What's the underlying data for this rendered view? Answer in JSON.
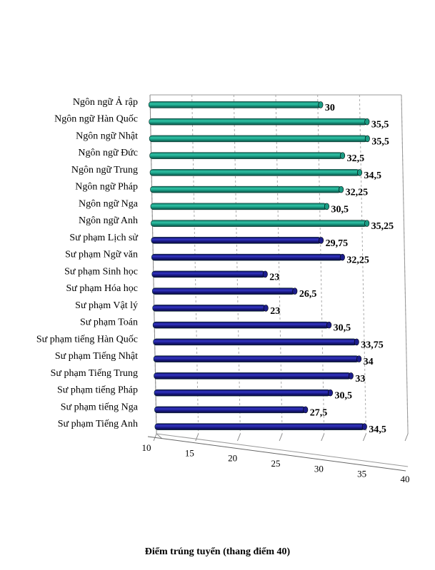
{
  "chart_data": {
    "type": "bar",
    "orientation": "horizontal",
    "categories": [
      "Ngôn ngữ Ả rập",
      "Ngôn ngữ Hàn Quốc",
      "Ngôn ngữ Nhật",
      "Ngôn ngữ Đức",
      "Ngôn ngữ Trung",
      "Ngôn ngữ Pháp",
      "Ngôn ngữ Nga",
      "Ngôn ngữ Anh",
      "Sư phạm  Lịch sử",
      "Sư phạm  Ngữ văn",
      "Sư phạm  Sinh học",
      "Sư phạm  Hóa học",
      "Sư phạm  Vật lý",
      "Sư phạm  Toán",
      "Sư phạm  tiếng Hàn Quốc",
      "Sư phạm  Tiếng Nhật",
      "Sư phạm  Tiếng Trung",
      "Sư phạm  tiếng Pháp",
      "Sư phạm  tiếng Nga",
      "Sư phạm  Tiếng Anh"
    ],
    "values": [
      30,
      35.5,
      35.5,
      32.5,
      34.5,
      32.25,
      30.5,
      35.25,
      29.75,
      32.25,
      23,
      26.5,
      23,
      30.5,
      33.75,
      34,
      33,
      30.5,
      27.5,
      34.5
    ],
    "value_labels": [
      "30",
      "35,5",
      "35,5",
      "32,5",
      "34,5",
      "32,25",
      "30,5",
      "35,25",
      "29,75",
      "32,25",
      "23",
      "26,5",
      "23",
      "30,5",
      "33,75",
      "34",
      "33",
      "30,5",
      "27,5",
      "34,5"
    ],
    "groups": [
      {
        "name": "Ngôn ngữ",
        "count": 8,
        "color": "#1a9c84"
      },
      {
        "name": "Sư phạm",
        "count": 12,
        "color": "#1c1d8c"
      }
    ],
    "xlim": [
      10,
      40
    ],
    "xticks": [
      "10",
      "15",
      "20",
      "25",
      "30",
      "35",
      "40"
    ],
    "xlabel": "Điểm trúng tuyển (thang điểm 40)",
    "title": "",
    "grid": true,
    "style": "3d-cylinder"
  }
}
